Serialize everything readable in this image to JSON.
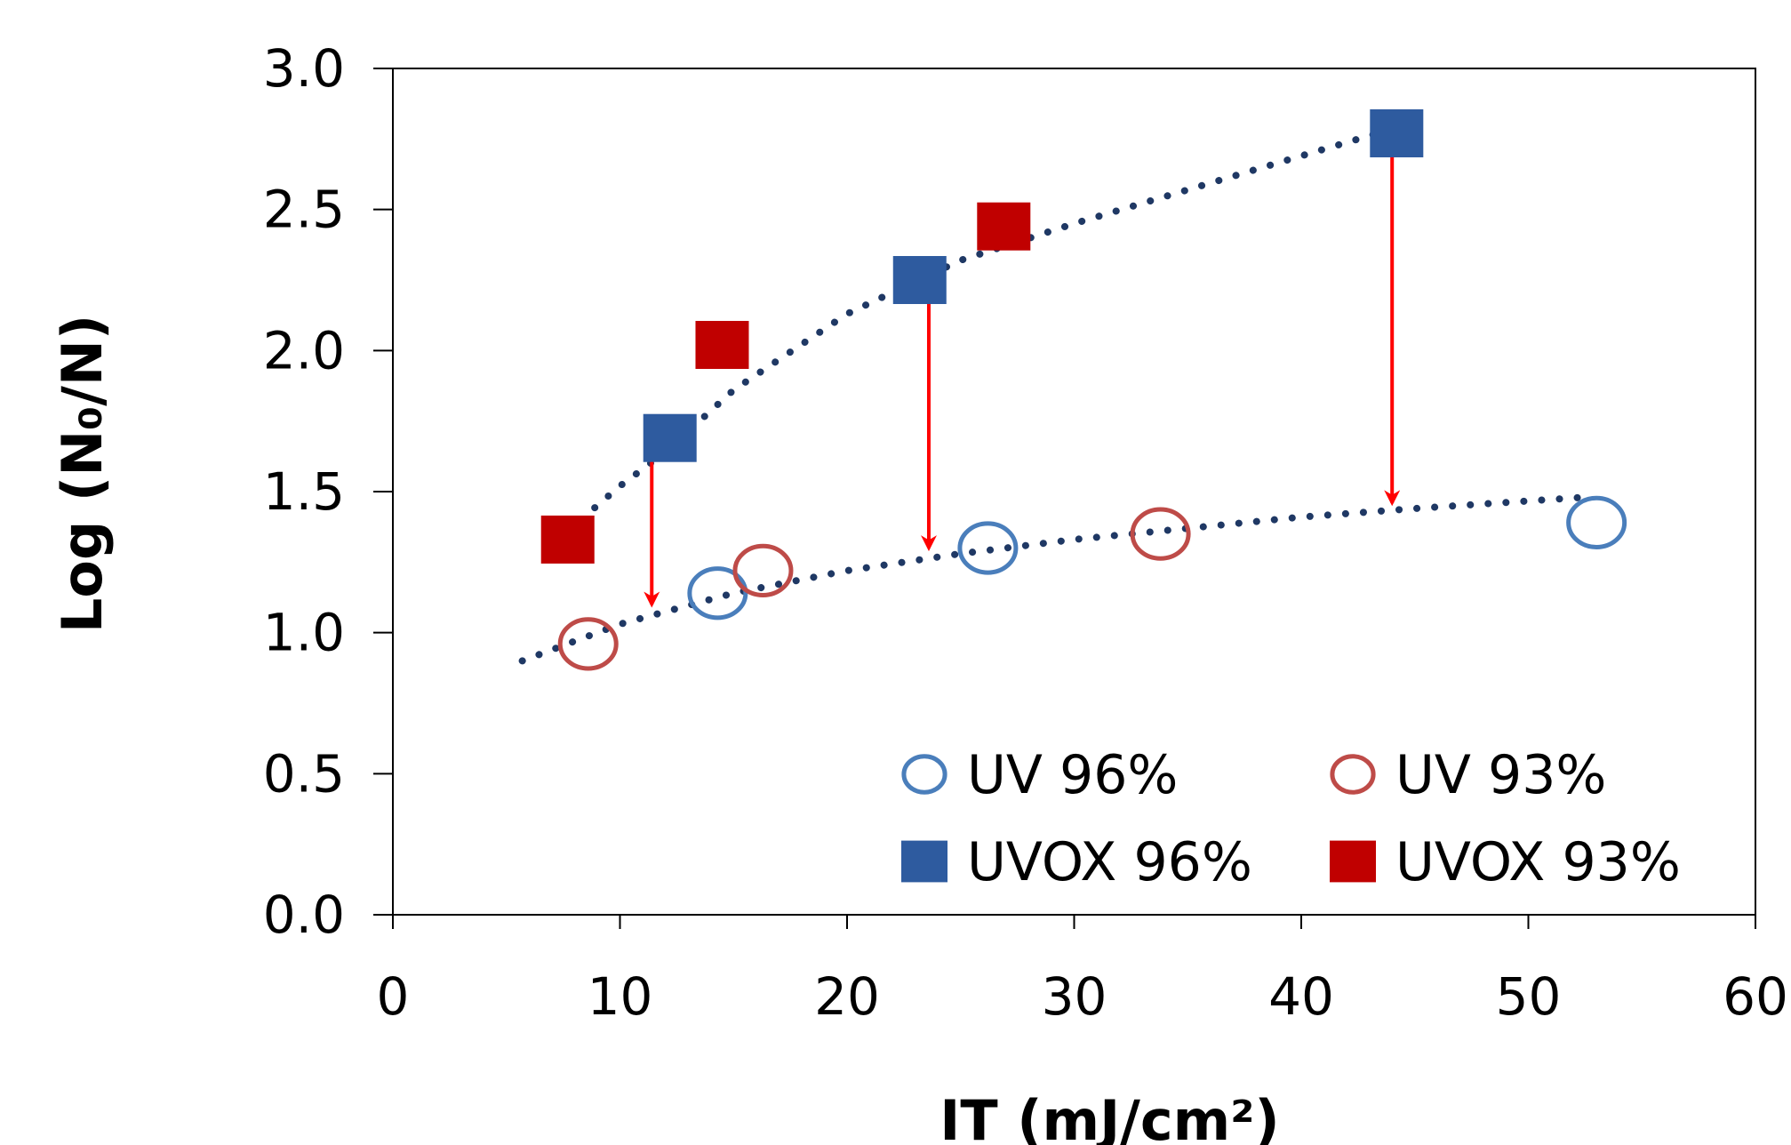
{
  "chart_data": {
    "type": "scatter",
    "title": "",
    "xlabel": "IT (mJ/cm²)",
    "ylabel": "Log (N₀/N)",
    "xlim": [
      0,
      60
    ],
    "ylim": [
      0,
      3.0
    ],
    "x_ticks": [
      "0",
      "10",
      "20",
      "30",
      "40",
      "50",
      "60"
    ],
    "y_ticks": [
      "0.0",
      "0.5",
      "1.0",
      "1.5",
      "2.0",
      "2.5",
      "3.0"
    ],
    "grid": false,
    "legend_position": "bottom-right",
    "series": [
      {
        "name": "UV 96%",
        "marker": "open-circle",
        "color": "#4a7ebb",
        "points": [
          [
            14.3,
            1.14
          ],
          [
            26.2,
            1.3
          ],
          [
            53.0,
            1.39
          ]
        ]
      },
      {
        "name": "UV 93%",
        "marker": "open-circle",
        "color": "#be4b48",
        "points": [
          [
            8.6,
            0.96
          ],
          [
            16.3,
            1.22
          ],
          [
            33.8,
            1.35
          ]
        ]
      },
      {
        "name": "UVOX 96%",
        "marker": "filled-square",
        "color": "#2e5b9f",
        "points": [
          [
            12.2,
            1.69
          ],
          [
            23.2,
            2.25
          ],
          [
            44.2,
            2.77
          ]
        ]
      },
      {
        "name": "UVOX 93%",
        "marker": "filled-square",
        "color": "#c00000",
        "points": [
          [
            7.7,
            1.33
          ],
          [
            14.5,
            2.02
          ],
          [
            26.9,
            2.44
          ]
        ]
      }
    ],
    "trendlines": [
      {
        "style": "dotted",
        "color": "#1f3864",
        "points": [
          [
            7.7,
            1.36
          ],
          [
            10,
            1.52
          ],
          [
            12,
            1.64
          ],
          [
            15,
            1.86
          ],
          [
            20,
            2.13
          ],
          [
            25,
            2.32
          ],
          [
            30,
            2.45
          ],
          [
            35,
            2.57
          ],
          [
            40,
            2.69
          ],
          [
            44.2,
            2.79
          ]
        ]
      },
      {
        "style": "dotted",
        "color": "#1f3864",
        "points": [
          [
            5.7,
            0.9
          ],
          [
            10,
            1.03
          ],
          [
            15,
            1.14
          ],
          [
            20,
            1.22
          ],
          [
            25,
            1.28
          ],
          [
            30,
            1.33
          ],
          [
            35,
            1.37
          ],
          [
            40,
            1.41
          ],
          [
            45,
            1.44
          ],
          [
            52.5,
            1.48
          ]
        ]
      }
    ],
    "annotations": [
      {
        "type": "double-arrow",
        "color": "#ff0000",
        "x": 11.4,
        "y_from": 1.1,
        "y_to": 1.68
      },
      {
        "type": "double-arrow",
        "color": "#ff0000",
        "x": 23.6,
        "y_from": 1.3,
        "y_to": 2.28
      },
      {
        "type": "double-arrow",
        "color": "#ff0000",
        "x": 44.0,
        "y_from": 1.46,
        "y_to": 2.75
      }
    ]
  }
}
